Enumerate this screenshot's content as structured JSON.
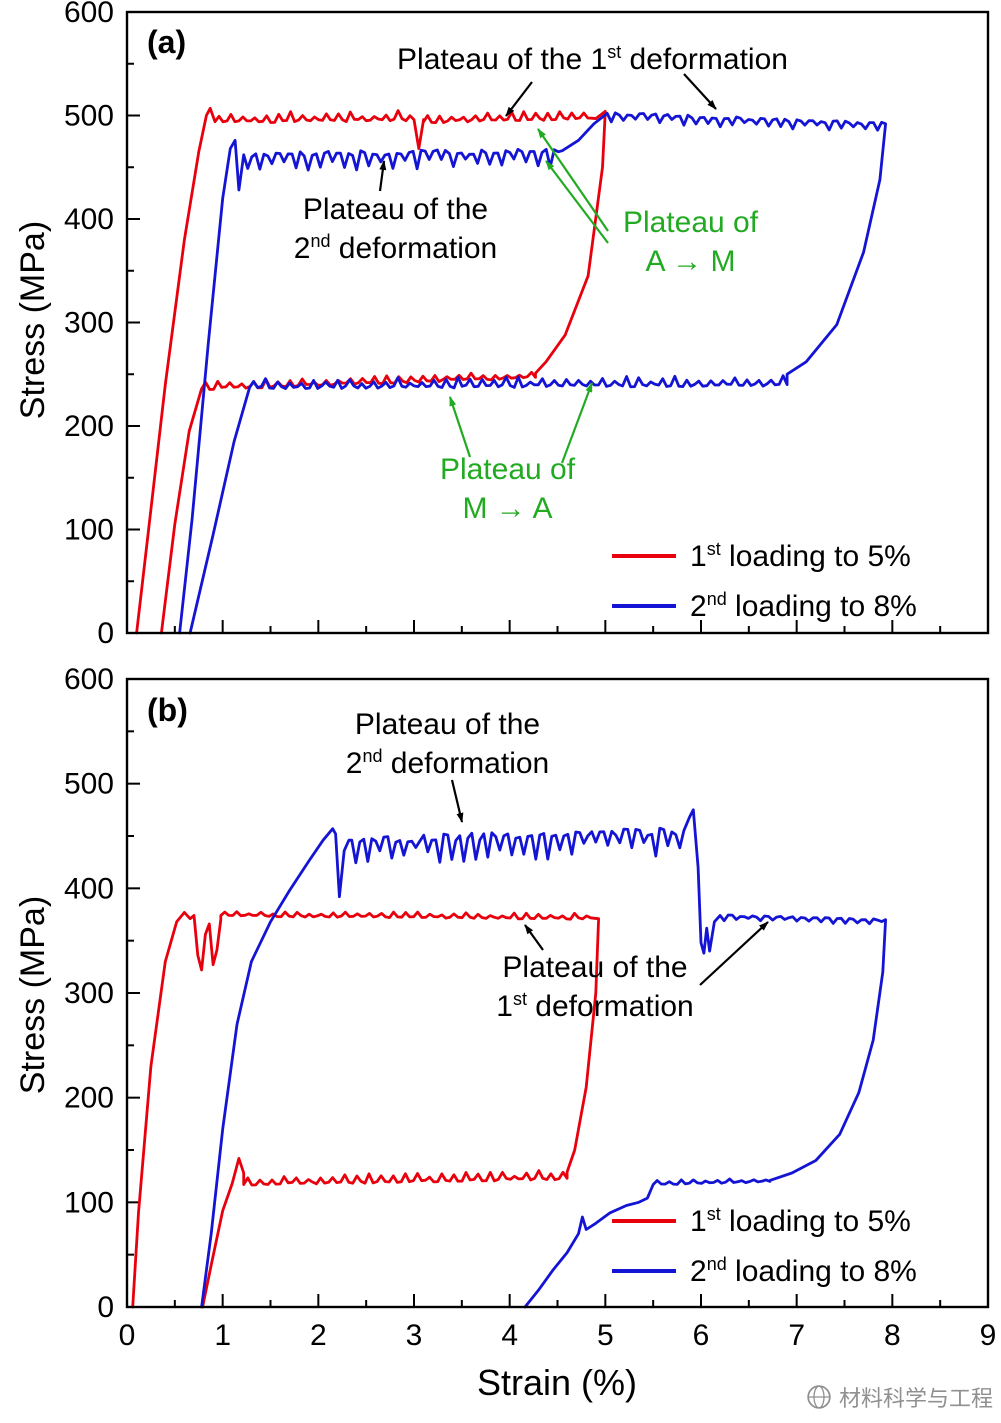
{
  "labels": {
    "panel_a": "(a)",
    "panel_b": "(b)"
  },
  "colors": {
    "red": "#e8000d",
    "blue": "#1414d4",
    "green": "#22aa22",
    "black": "#000000",
    "gray": "#909090"
  },
  "legend": {
    "first": {
      "pre": "1",
      "sup": "st",
      "post": " loading to 5%"
    },
    "second": {
      "pre": "2",
      "sup": "nd",
      "post": " loading to 8%"
    }
  },
  "annotations": {
    "a_plateau1": {
      "pre": "Plateau of the 1",
      "sup": "st",
      "post": " deformation"
    },
    "a_plateau2_line1": "Plateau of the",
    "a_plateau2": {
      "pre": "2",
      "sup": "nd",
      "post": " deformation"
    },
    "a_am_line1": "Plateau of",
    "a_am_line2": "A → M",
    "a_ma_line1": "Plateau of",
    "a_ma_line2": "M → A",
    "b_plateau2_line1": "Plateau of the",
    "b_plateau2": {
      "pre": "2",
      "sup": "nd",
      "post": " deformation"
    },
    "b_plateau1_line1": "Plateau of the",
    "b_plateau1": {
      "pre": "1",
      "sup": "st",
      "post": " deformation"
    }
  },
  "watermark": {
    "text": "材料科学与工程"
  },
  "chart_data": [
    {
      "panel": "a",
      "type": "line",
      "title": "",
      "xlabel": "Strain (%)",
      "ylabel": "Stress (MPa)",
      "xlim": [
        0,
        9
      ],
      "ylim": [
        0,
        600
      ],
      "xticks": [
        0,
        1,
        2,
        3,
        4,
        5,
        6,
        7,
        8,
        9
      ],
      "yticks": [
        0,
        100,
        200,
        300,
        400,
        500,
        600
      ],
      "legend_position": "lower right",
      "series": [
        {
          "name": "1st loading to 5%",
          "color": "#e8000d",
          "segments": [
            {
              "t": "line",
              "pts": [
                [
                  0.1,
                  0
                ],
                [
                  0.22,
                  95
                ],
                [
                  0.4,
                  240
                ],
                [
                  0.6,
                  380
                ],
                [
                  0.75,
                  465
                ],
                [
                  0.83,
                  500
                ],
                [
                  0.87,
                  507
                ],
                [
                  0.92,
                  494
                ]
              ]
            },
            {
              "t": "plat",
              "x0": 0.92,
              "x1": 3.0,
              "y0": 494,
              "y1": 496,
              "amp": 9,
              "dir": 1
            },
            {
              "t": "line",
              "pts": [
                [
                  3.0,
                  496
                ],
                [
                  3.05,
                  468
                ],
                [
                  3.1,
                  496
                ]
              ]
            },
            {
              "t": "plat",
              "x0": 3.1,
              "x1": 4.9,
              "y0": 494,
              "y1": 497,
              "amp": 9,
              "dir": 1
            },
            {
              "t": "line",
              "pts": [
                [
                  4.9,
                  497
                ],
                [
                  5.0,
                  504
                ],
                [
                  4.97,
                  450
                ],
                [
                  4.82,
                  345
                ],
                [
                  4.58,
                  288
                ],
                [
                  4.38,
                  262
                ],
                [
                  4.27,
                  251
                ]
              ]
            },
            {
              "t": "plat",
              "x0": 4.27,
              "x1": 0.78,
              "y0": 247,
              "y1": 236,
              "amp": 7,
              "dir": 1
            },
            {
              "t": "line",
              "pts": [
                [
                  0.78,
                  236
                ],
                [
                  0.65,
                  195
                ],
                [
                  0.5,
                  105
                ],
                [
                  0.36,
                  0
                ]
              ]
            }
          ]
        },
        {
          "name": "2nd loading to 8%",
          "color": "#1414d4",
          "segments": [
            {
              "t": "line",
              "pts": [
                [
                  0.55,
                  0
                ],
                [
                  0.68,
                  110
                ],
                [
                  0.85,
                  280
                ],
                [
                  1.0,
                  420
                ],
                [
                  1.08,
                  468
                ],
                [
                  1.13,
                  476
                ],
                [
                  1.17,
                  428
                ],
                [
                  1.22,
                  462
                ]
              ]
            },
            {
              "t": "plat",
              "x0": 1.22,
              "x1": 4.55,
              "y0": 462,
              "y1": 466,
              "amp": 16,
              "dir": -1
            },
            {
              "t": "line",
              "pts": [
                [
                  4.55,
                  466
                ],
                [
                  4.72,
                  476
                ],
                [
                  4.88,
                  492
                ],
                [
                  5.02,
                  502
                ]
              ]
            },
            {
              "t": "plat",
              "x0": 5.02,
              "x1": 7.93,
              "y0": 502,
              "y1": 492,
              "amp": 9,
              "dir": -1
            },
            {
              "t": "line",
              "pts": [
                [
                  7.93,
                  492
                ],
                [
                  7.87,
                  438
                ],
                [
                  7.7,
                  368
                ],
                [
                  7.42,
                  298
                ],
                [
                  7.1,
                  262
                ],
                [
                  6.9,
                  250
                ]
              ]
            },
            {
              "t": "plat",
              "x0": 6.9,
              "x1": 1.28,
              "y0": 240,
              "y1": 237,
              "amp": 9,
              "dir": 1
            },
            {
              "t": "line",
              "pts": [
                [
                  1.28,
                  237
                ],
                [
                  1.12,
                  185
                ],
                [
                  0.9,
                  95
                ],
                [
                  0.66,
                  0
                ]
              ]
            }
          ]
        }
      ]
    },
    {
      "panel": "b",
      "type": "line",
      "title": "",
      "xlabel": "Strain (%)",
      "ylabel": "Stress (MPa)",
      "xlim": [
        0,
        9
      ],
      "ylim": [
        0,
        600
      ],
      "xticks": [
        0,
        1,
        2,
        3,
        4,
        5,
        6,
        7,
        8,
        9
      ],
      "yticks": [
        0,
        100,
        200,
        300,
        400,
        500,
        600
      ],
      "legend_position": "lower right",
      "series": [
        {
          "name": "1st loading to 5%",
          "color": "#e8000d",
          "segments": [
            {
              "t": "line",
              "pts": [
                [
                  0.06,
                  0
                ],
                [
                  0.12,
                  90
                ],
                [
                  0.25,
                  230
                ],
                [
                  0.4,
                  330
                ],
                [
                  0.52,
                  368
                ],
                [
                  0.6,
                  377
                ],
                [
                  0.66,
                  371
                ]
              ]
            },
            {
              "t": "line",
              "pts": [
                [
                  0.7,
                  374
                ],
                [
                  0.74,
                  336
                ],
                [
                  0.78,
                  322
                ],
                [
                  0.82,
                  356
                ],
                [
                  0.86,
                  366
                ],
                [
                  0.9,
                  327
                ],
                [
                  0.94,
                  341
                ],
                [
                  0.98,
                  370
                ]
              ]
            },
            {
              "t": "plat",
              "x0": 0.98,
              "x1": 4.93,
              "y0": 374,
              "y1": 371,
              "amp": 5,
              "dir": 1
            },
            {
              "t": "line",
              "pts": [
                [
                  4.93,
                  371
                ],
                [
                  4.9,
                  300
                ],
                [
                  4.8,
                  210
                ],
                [
                  4.68,
                  150
                ],
                [
                  4.6,
                  129
                ]
              ]
            },
            {
              "t": "plat",
              "x0": 4.6,
              "x1": 1.22,
              "y0": 123,
              "y1": 117,
              "amp": 8,
              "dir": 1
            },
            {
              "t": "line",
              "pts": [
                [
                  1.22,
                  128
                ],
                [
                  1.17,
                  142
                ],
                [
                  1.1,
                  118
                ],
                [
                  1.0,
                  92
                ],
                [
                  0.88,
                  40
                ],
                [
                  0.79,
                  0
                ]
              ]
            }
          ]
        },
        {
          "name": "2nd loading to 8%",
          "color": "#1414d4",
          "segments": [
            {
              "t": "line",
              "pts": [
                [
                  0.78,
                  0
                ],
                [
                  0.88,
                  70
                ],
                [
                  1.0,
                  170
                ],
                [
                  1.15,
                  270
                ],
                [
                  1.3,
                  330
                ],
                [
                  1.5,
                  368
                ],
                [
                  1.7,
                  398
                ],
                [
                  1.9,
                  426
                ],
                [
                  2.05,
                  446
                ],
                [
                  2.15,
                  457
                ]
              ]
            },
            {
              "t": "line",
              "pts": [
                [
                  2.18,
                  452
                ],
                [
                  2.22,
                  392
                ],
                [
                  2.27,
                  436
                ],
                [
                  2.32,
                  446
                ]
              ]
            },
            {
              "t": "plat",
              "x0": 2.35,
              "x1": 5.82,
              "y0": 446,
              "y1": 455,
              "amp": 24,
              "dir": -1
            },
            {
              "t": "line",
              "pts": [
                [
                  5.82,
                  455
                ],
                [
                  5.88,
                  468
                ],
                [
                  5.92,
                  475
                ],
                [
                  5.97,
                  420
                ],
                [
                  6.0,
                  348
                ],
                [
                  6.03,
                  338
                ],
                [
                  6.06,
                  362
                ],
                [
                  6.09,
                  340
                ],
                [
                  6.14,
                  368
                ],
                [
                  6.2,
                  374
                ]
              ]
            },
            {
              "t": "plat",
              "x0": 6.2,
              "x1": 7.93,
              "y0": 374,
              "y1": 370,
              "amp": 5,
              "dir": -1
            },
            {
              "t": "line",
              "pts": [
                [
                  7.93,
                  370
                ],
                [
                  7.9,
                  320
                ],
                [
                  7.8,
                  255
                ],
                [
                  7.65,
                  205
                ],
                [
                  7.45,
                  165
                ],
                [
                  7.2,
                  140
                ],
                [
                  6.95,
                  128
                ],
                [
                  6.72,
                  121
                ]
              ]
            },
            {
              "t": "plat",
              "x0": 6.72,
              "x1": 5.5,
              "y0": 120,
              "y1": 117,
              "amp": 4,
              "dir": 1
            },
            {
              "t": "line",
              "pts": [
                [
                  5.5,
                  117
                ],
                [
                  5.44,
                  104
                ],
                [
                  5.35,
                  100
                ],
                [
                  5.22,
                  97
                ],
                [
                  5.05,
                  90
                ],
                [
                  4.9,
                  80
                ],
                [
                  4.8,
                  74
                ],
                [
                  4.76,
                  86
                ],
                [
                  4.72,
                  70
                ],
                [
                  4.6,
                  52
                ],
                [
                  4.45,
                  35
                ],
                [
                  4.3,
                  16
                ],
                [
                  4.16,
                  0
                ]
              ]
            }
          ]
        }
      ]
    }
  ]
}
